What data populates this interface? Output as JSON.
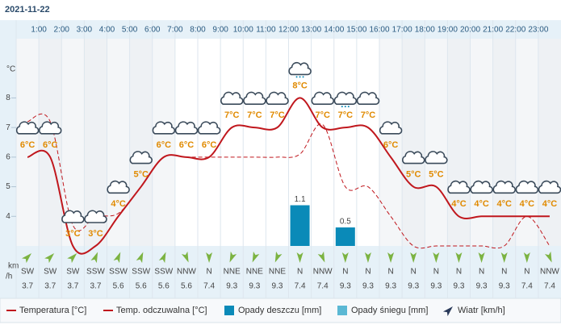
{
  "date": "2021-11-22",
  "chart_data": {
    "type": "line",
    "y_axis_label": "°C",
    "ylim": [
      3,
      10
    ],
    "yticks": [
      4,
      5,
      6,
      7,
      8
    ],
    "hour_labels": [
      "1:00",
      "2:00",
      "3:00",
      "4:00",
      "5:00",
      "6:00",
      "7:00",
      "8:00",
      "9:00",
      "10:00",
      "11:00",
      "12:00",
      "13:00",
      "14:00",
      "15:00",
      "16:00",
      "17:00",
      "18:00",
      "19:00",
      "20:00",
      "21:00",
      "22:00",
      "23:00"
    ],
    "series": [
      {
        "name": "Temperatura [°C]",
        "color": "#c0171d",
        "values": [
          6,
          6,
          3,
          3,
          4,
          5,
          6,
          6,
          6,
          7,
          7,
          7,
          8,
          7,
          7,
          7,
          6,
          5,
          5,
          4,
          4,
          4,
          4,
          4
        ],
        "value_labels": [
          "6°C",
          "6°C",
          "3°C",
          "3°C",
          "4°C",
          "5°C",
          "6°C",
          "6°C",
          "6°C",
          "7°C",
          "7°C",
          "7°C",
          "8°C",
          "7°C",
          "7°C",
          "7°C",
          "6°C",
          "5°C",
          "5°C",
          "4°C",
          "4°C",
          "4°C",
          "4°C",
          "4°C"
        ]
      },
      {
        "name": "Temp. odczuwalna [°C]",
        "color": "#c0171d",
        "dashed": true,
        "values": [
          7.2,
          7.2,
          3.7,
          4.0,
          4.1,
          5,
          6,
          6,
          6,
          6,
          6,
          6,
          6.1,
          7.1,
          5,
          5,
          4,
          3,
          3,
          3,
          3,
          3,
          4,
          3
        ]
      }
    ],
    "rain": {
      "name": "Opady deszczu [mm]",
      "color": "#0a8ab8",
      "y2lim": [
        0,
        5.6
      ],
      "values": [
        0,
        0,
        0,
        0,
        0,
        0,
        0,
        0,
        0,
        0,
        0,
        0,
        1.1,
        0,
        0.5,
        0,
        0,
        0,
        0,
        0,
        0,
        0,
        0,
        0
      ],
      "value_labels": [
        null,
        null,
        null,
        null,
        null,
        null,
        null,
        null,
        null,
        null,
        null,
        null,
        "1.1",
        null,
        "0.5",
        null,
        null,
        null,
        null,
        null,
        null,
        null,
        null,
        null
      ]
    },
    "snow": {
      "name": "Opady śniegu [mm]",
      "color": "#5bb8d4"
    },
    "wind": {
      "name": "Wiatr [km/h]",
      "unit": [
        "km",
        "/h"
      ],
      "color": "#7cb342",
      "directions": [
        "SW",
        "SW",
        "SW",
        "SSW",
        "SSW",
        "SSW",
        "SSW",
        "NNW",
        "N",
        "NNE",
        "NNE",
        "NNE",
        "N",
        "NNW",
        "N",
        "N",
        "N",
        "N",
        "N",
        "N",
        "N",
        "N",
        "N",
        "NNW"
      ],
      "speeds": [
        3.7,
        3.7,
        3.7,
        3.7,
        5.6,
        5.6,
        5.6,
        5.6,
        7.4,
        9.3,
        9.3,
        9.3,
        7.4,
        7.4,
        9.3,
        9.3,
        9.3,
        9.3,
        9.3,
        9.3,
        9.3,
        9.3,
        7.4,
        7.4
      ]
    }
  }
}
